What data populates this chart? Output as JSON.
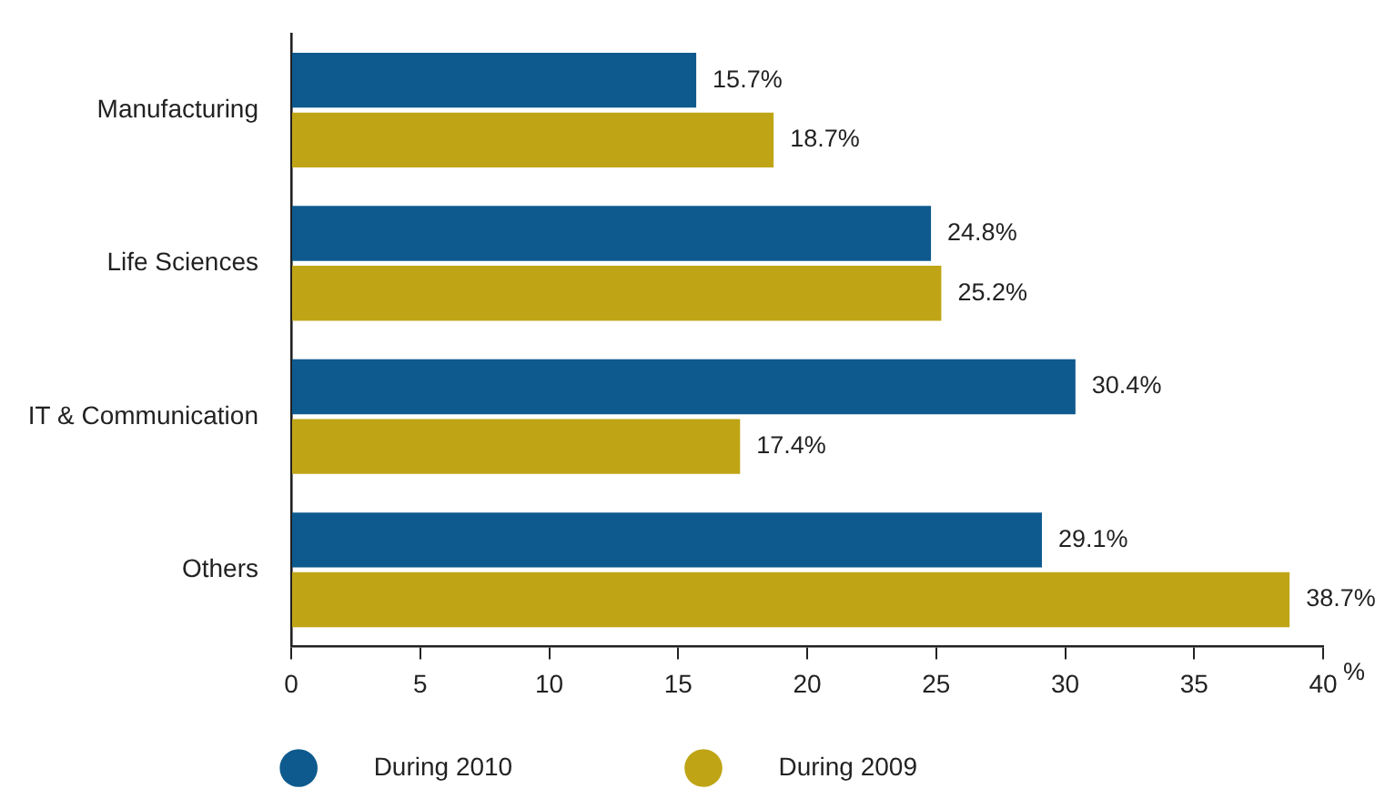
{
  "chart_data": {
    "type": "bar",
    "orientation": "horizontal",
    "xlabel": "%",
    "categories": [
      "Manufacturing",
      "Life Sciences",
      "IT & Communication",
      "Others"
    ],
    "series": [
      {
        "name": "During 2010",
        "color": "#0e5a8e",
        "values": [
          15.7,
          24.8,
          30.4,
          29.1
        ],
        "value_labels": [
          "15.7%",
          "24.8%",
          "30.4%",
          "29.1%"
        ]
      },
      {
        "name": "During 2009",
        "color": "#bfa516",
        "values": [
          18.7,
          25.2,
          17.4,
          38.7
        ],
        "value_labels": [
          "18.7%",
          "25.2%",
          "17.4%",
          "38.7%"
        ]
      }
    ],
    "xlim": [
      0,
      40
    ],
    "xticks": [
      0,
      5,
      10,
      15,
      20,
      25,
      30,
      35,
      40
    ],
    "grid": false,
    "legend": "bottom"
  }
}
